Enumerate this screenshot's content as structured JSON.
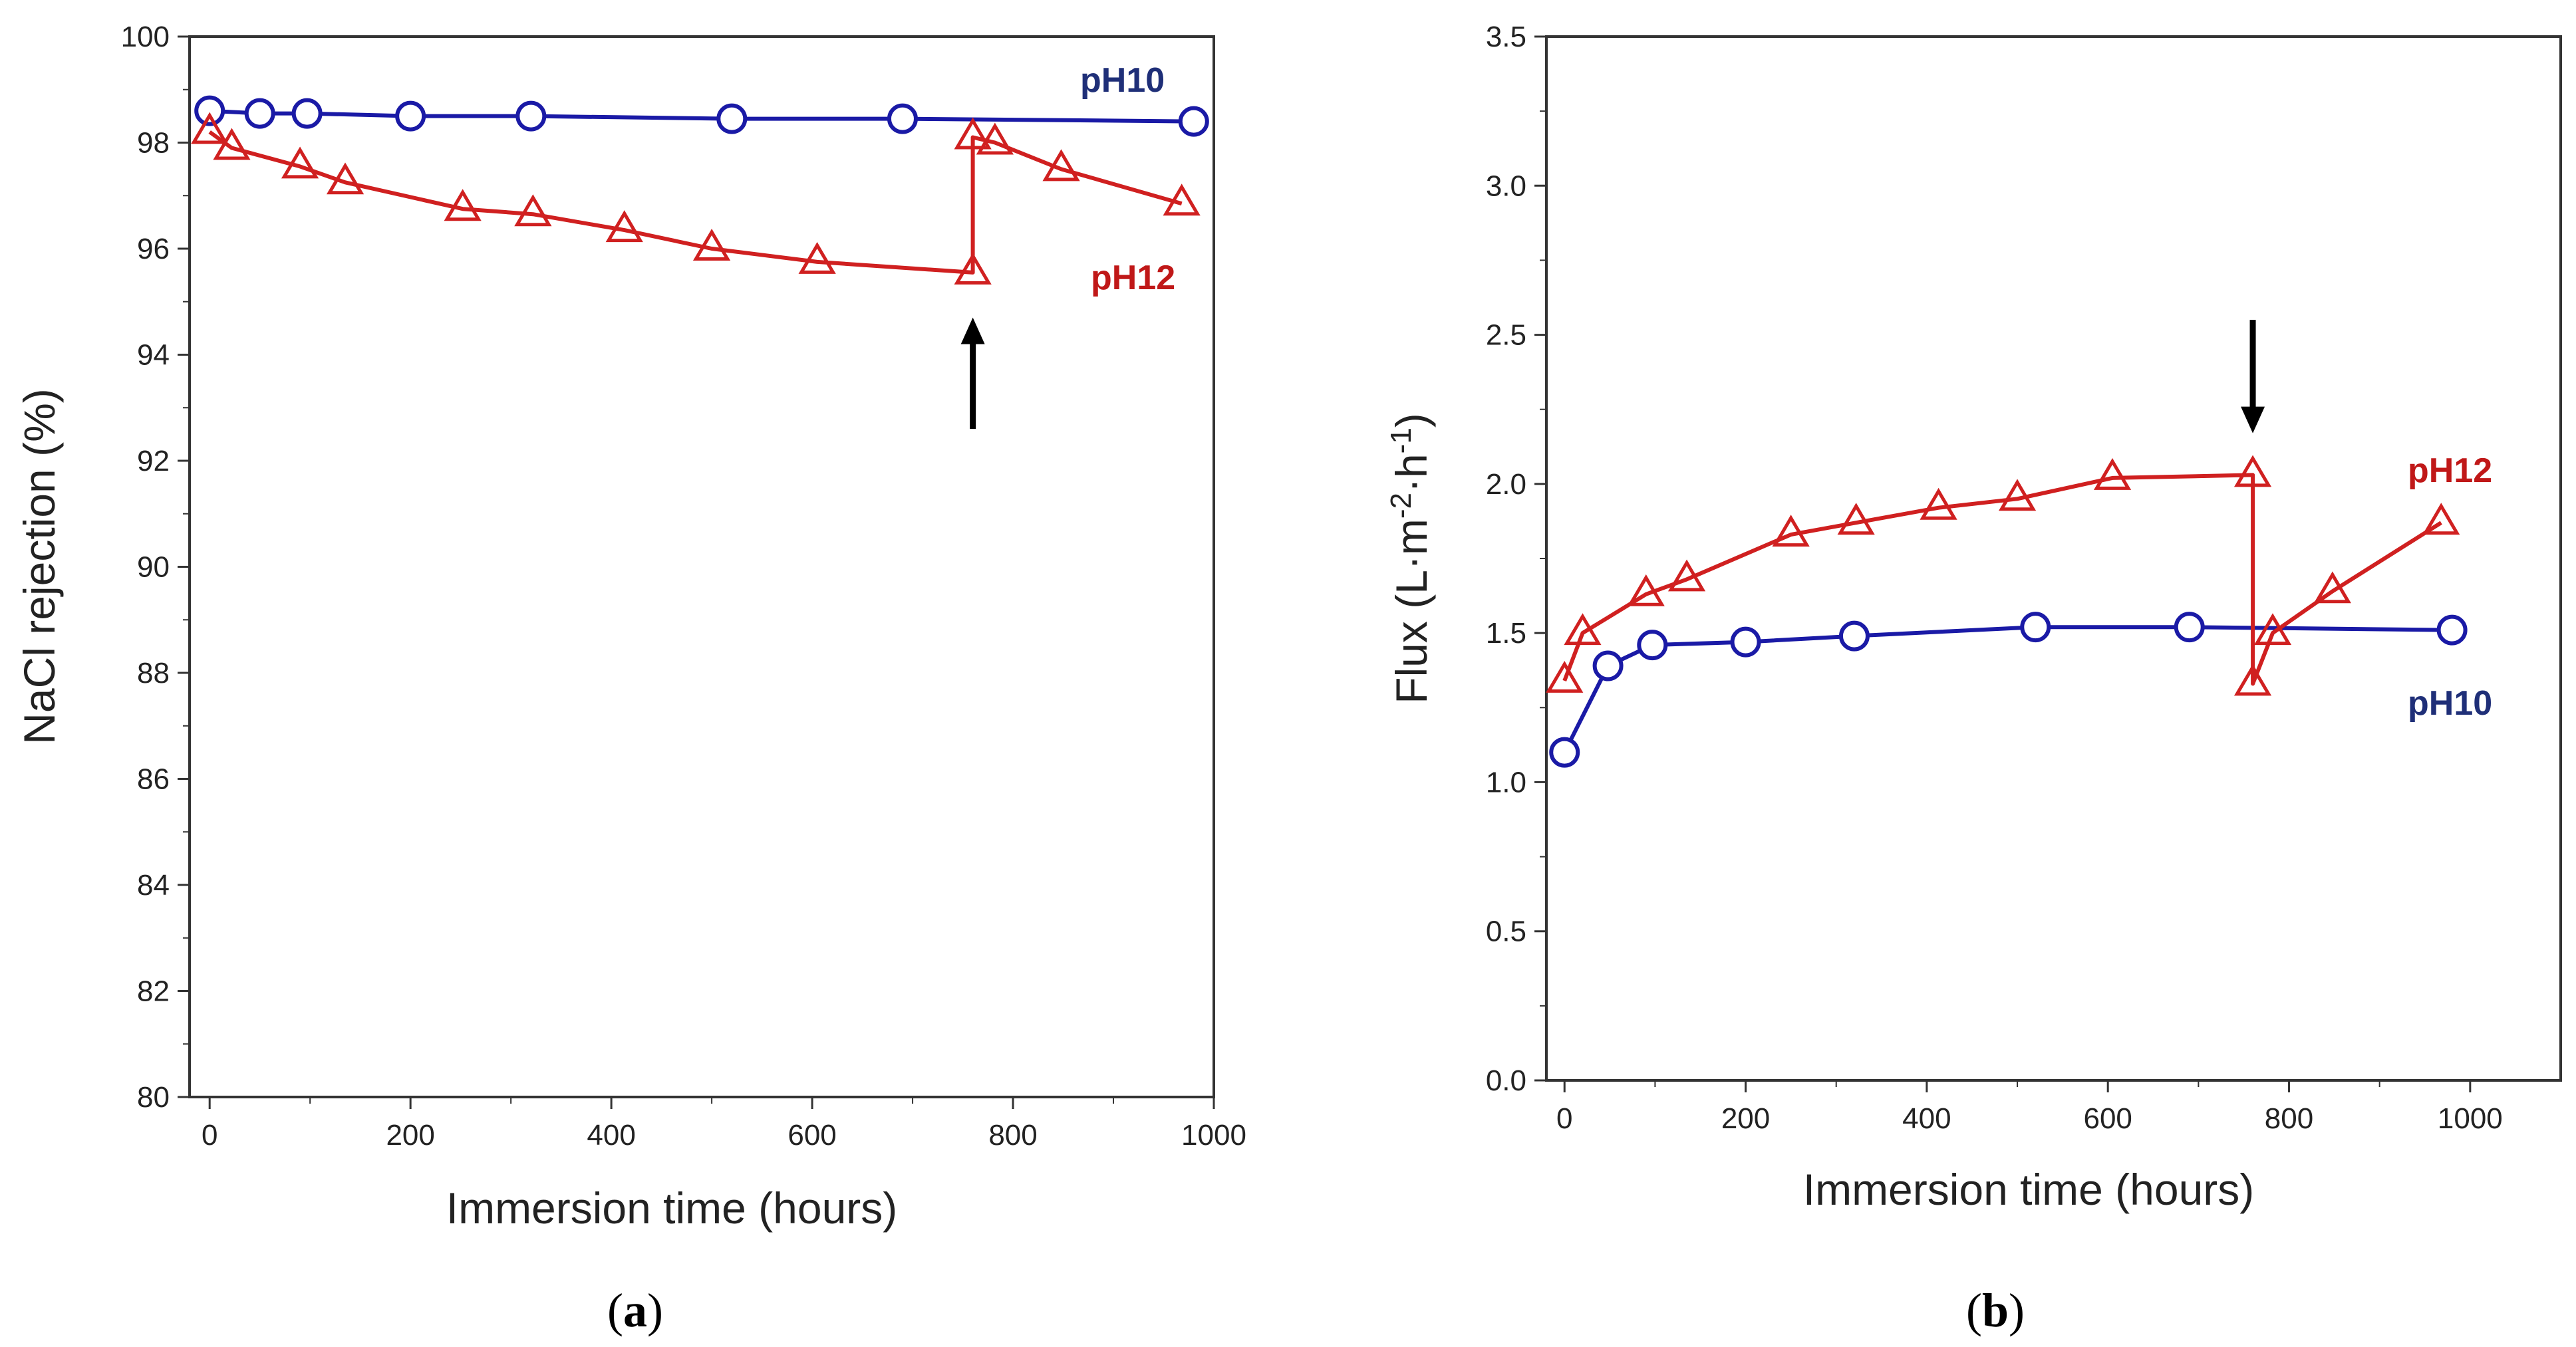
{
  "chart_data": [
    {
      "type": "line",
      "panel": "a",
      "panel_caption": {
        "open": "(",
        "letter": "a",
        "close": ")"
      },
      "xlabel": "Immersion time  (hours)",
      "ylabel": "NaCl rejection (%)",
      "xlim": [
        -20,
        1000
      ],
      "ylim": [
        80,
        100
      ],
      "xticks": [
        0,
        200,
        400,
        600,
        800,
        1000
      ],
      "yticks": [
        80,
        82,
        84,
        86,
        88,
        90,
        92,
        94,
        96,
        98,
        100
      ],
      "series": [
        {
          "name": "pH10",
          "color": "#1a1aa6",
          "label_color": "#1f2f78",
          "marker": "circle",
          "x": [
            0,
            50,
            97,
            200,
            320,
            520,
            690,
            980
          ],
          "y": [
            98.6,
            98.55,
            98.55,
            98.5,
            98.5,
            98.45,
            98.45,
            98.4
          ]
        },
        {
          "name": "pH12",
          "color": "#d02020",
          "label_color": "#c01818",
          "marker": "triangle",
          "x": [
            0,
            22,
            90,
            135,
            252,
            322,
            413,
            500,
            605,
            760,
            760,
            782,
            848,
            968
          ],
          "y": [
            98.2,
            97.9,
            97.55,
            97.25,
            96.75,
            96.65,
            96.35,
            96.0,
            95.75,
            95.55,
            98.1,
            98.0,
            97.5,
            96.85
          ]
        }
      ],
      "annotations": [
        {
          "type": "arrow",
          "direction": "up",
          "x": 760,
          "y_from": 92.6,
          "y_to": 94.7
        }
      ]
    },
    {
      "type": "line",
      "panel": "b",
      "panel_caption": {
        "open": "(",
        "letter": "b",
        "close": ")"
      },
      "xlabel": "Immersion time  (hours)",
      "ylabel_parts": [
        "Flux (L·m",
        "-2",
        "·h",
        "-1",
        ")"
      ],
      "xlim": [
        -20,
        1100
      ],
      "ylim": [
        0.0,
        3.5
      ],
      "xticks": [
        0,
        200,
        400,
        600,
        800,
        1000
      ],
      "yticks": [
        0.0,
        0.5,
        1.0,
        1.5,
        2.0,
        2.5,
        3.0,
        3.5
      ],
      "ytick_labels": [
        "0.0",
        "0.5",
        "1.0",
        "1.5",
        "2.0",
        "2.5",
        "3.0",
        "3.5"
      ],
      "series": [
        {
          "name": "pH10",
          "color": "#1a1aa6",
          "label_color": "#1f2f78",
          "marker": "circle",
          "x": [
            0,
            48,
            97,
            200,
            320,
            520,
            690,
            980
          ],
          "y": [
            1.1,
            1.39,
            1.46,
            1.47,
            1.49,
            1.52,
            1.52,
            1.51
          ]
        },
        {
          "name": "pH12",
          "color": "#d02020",
          "label_color": "#c01818",
          "marker": "triangle",
          "x": [
            0,
            20,
            90,
            135,
            250,
            322,
            413,
            500,
            605,
            760,
            760,
            782,
            848,
            968
          ],
          "y": [
            1.34,
            1.5,
            1.63,
            1.68,
            1.83,
            1.87,
            1.92,
            1.95,
            2.02,
            2.03,
            1.33,
            1.5,
            1.64,
            1.87
          ]
        }
      ],
      "annotations": [
        {
          "type": "arrow",
          "direction": "down",
          "x": 760,
          "y_from": 2.55,
          "y_to": 2.17
        }
      ]
    }
  ]
}
